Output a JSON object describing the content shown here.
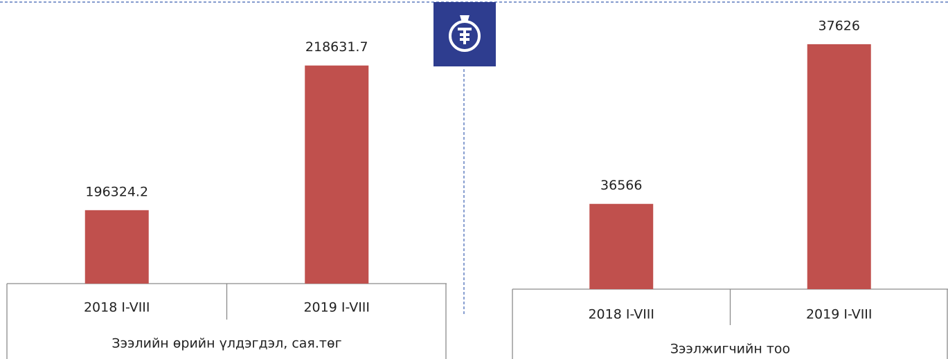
{
  "chart_data": [
    {
      "type": "bar",
      "categories": [
        "2018 I-VIII",
        "2019 I-VIII"
      ],
      "values": [
        196324.2,
        218631.7
      ],
      "color": "#c0504d",
      "ylim": [
        185000,
        225000
      ],
      "axis_title": "Зээлийн өрийн үлдэгдэл, сая.төг"
    },
    {
      "type": "bar",
      "categories": [
        "2018 I-VIII",
        "2019 I-VIII"
      ],
      "values": [
        36566,
        37626
      ],
      "color": "#c0504d",
      "ylim": [
        36000,
        37800
      ],
      "axis_title": "Зээлжигчийн тоо"
    }
  ]
}
